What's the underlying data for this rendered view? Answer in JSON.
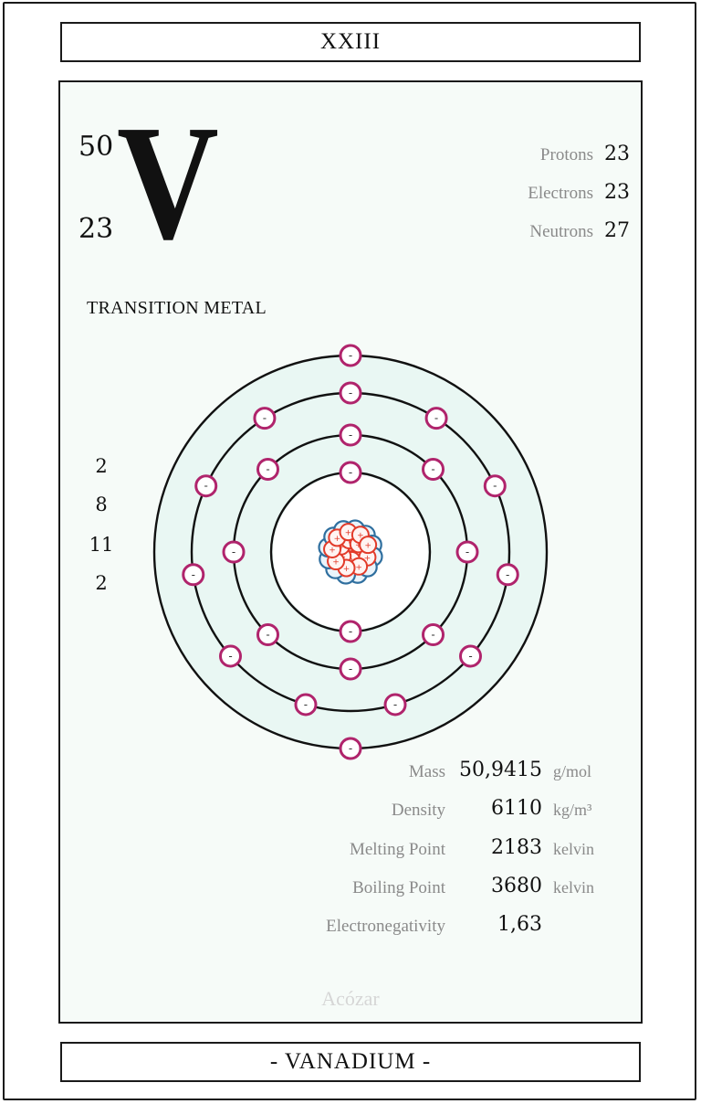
{
  "card": {
    "number": "XXIII",
    "name": "- VANADIUM -",
    "author": "Acózar"
  },
  "element": {
    "symbol": "V",
    "mass_number": "50",
    "atomic_number": "23",
    "category": "TRANSITION METAL"
  },
  "particles": [
    {
      "label": "Protons",
      "value": "23"
    },
    {
      "label": "Electrons",
      "value": "23"
    },
    {
      "label": "Neutrons",
      "value": "27"
    }
  ],
  "shells": [
    "2",
    "8",
    "11",
    "2"
  ],
  "diagram": {
    "electron_sign": "-",
    "proton_sign": "+",
    "colors": {
      "electron": "#b0246c",
      "proton": "#e23b2a",
      "neutron": "#2f6f9f",
      "orbit": "#111111",
      "orbit_fill": "#e9f7f3"
    }
  },
  "properties": [
    {
      "label": "Mass",
      "value": "50,9415",
      "unit": "g/mol"
    },
    {
      "label": "Density",
      "value": "6110",
      "unit": "kg/m³"
    },
    {
      "label": "Melting Point",
      "value": "2183",
      "unit": "kelvin"
    },
    {
      "label": "Boiling Point",
      "value": "3680",
      "unit": "kelvin"
    },
    {
      "label": "Electronegativity",
      "value": "1,63",
      "unit": ""
    }
  ]
}
